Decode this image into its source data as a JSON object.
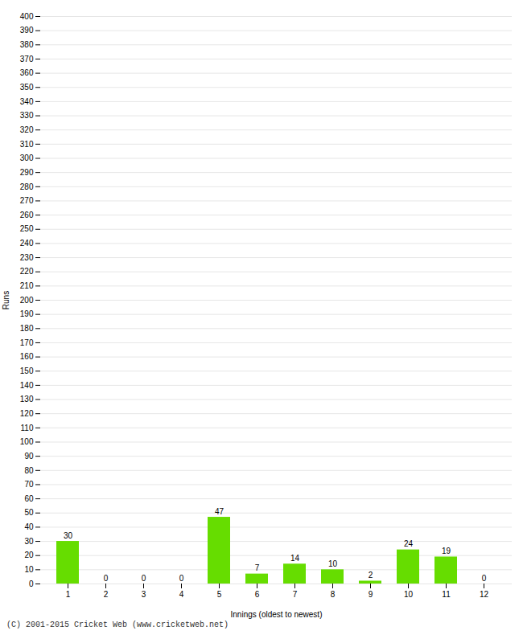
{
  "chart_data": {
    "type": "bar",
    "categories": [
      "1",
      "2",
      "3",
      "4",
      "5",
      "6",
      "7",
      "8",
      "9",
      "10",
      "11",
      "12"
    ],
    "values": [
      30,
      0,
      0,
      0,
      47,
      7,
      14,
      10,
      2,
      24,
      19,
      0
    ],
    "color": "#66dd00",
    "xlabel": "Innings (oldest to newest)",
    "ylabel": "Runs",
    "ylim": [
      0,
      400
    ],
    "yticks": [
      0,
      10,
      20,
      30,
      40,
      50,
      60,
      70,
      80,
      90,
      100,
      110,
      120,
      130,
      140,
      150,
      160,
      170,
      180,
      190,
      200,
      210,
      220,
      230,
      240,
      250,
      260,
      270,
      280,
      290,
      300,
      310,
      320,
      330,
      340,
      350,
      360,
      370,
      380,
      390,
      400
    ],
    "grid": true,
    "data_labels": true,
    "annotations": [
      "(C) 2001-2015 Cricket Web (www.cricketweb.net)"
    ]
  }
}
